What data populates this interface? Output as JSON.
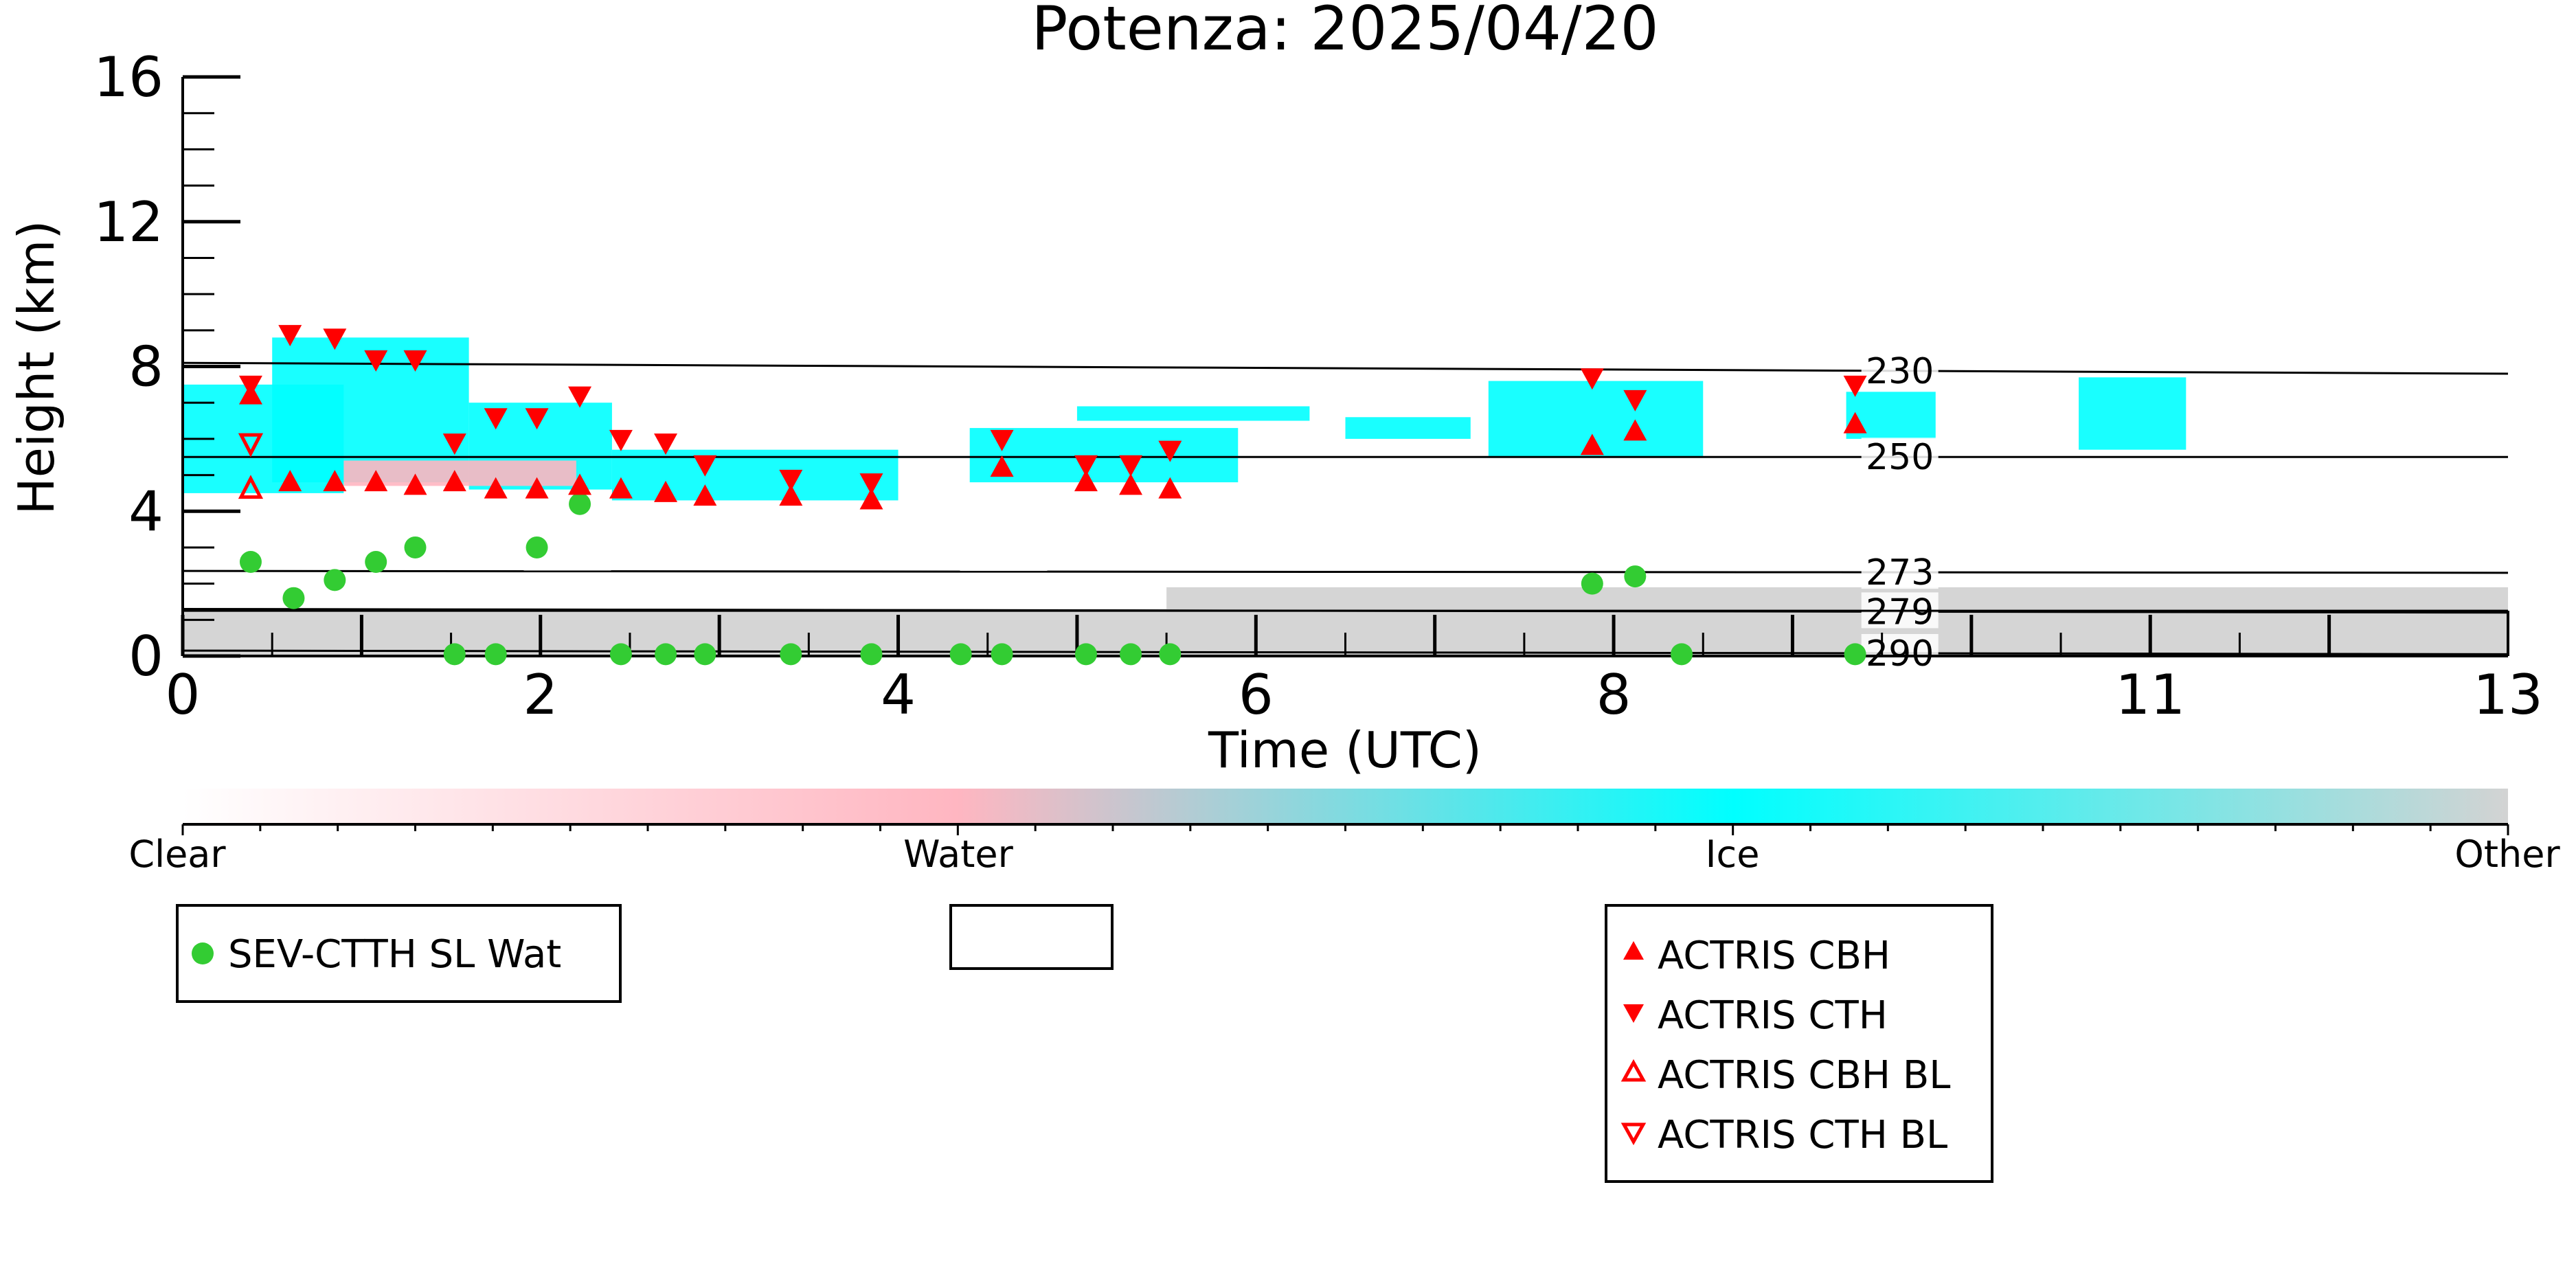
{
  "chart_data": {
    "type": "scatter",
    "title": "Potenza: 2025/04/20",
    "xlabel": "Time (UTC)",
    "ylabel": "Height (km)",
    "xlim": [
      0,
      13
    ],
    "ylim": [
      0,
      16
    ],
    "x_ticks": [
      "0",
      "2",
      "4",
      "6",
      "8",
      "11",
      "13"
    ],
    "x_tick_values": [
      0,
      2,
      4,
      6,
      8,
      11,
      13
    ],
    "y_ticks": [
      "0",
      "4",
      "8",
      "12",
      "16"
    ],
    "y_tick_values": [
      0,
      4,
      8,
      12,
      16
    ],
    "grid": false,
    "colors": {
      "clear": "#ffffff",
      "water": "#ffb6c1",
      "ice": "#00ffff",
      "other": "#d3d3d3",
      "markers": "#ff0000",
      "sev": "#33cc33"
    },
    "colorbar": {
      "labels": [
        "Clear",
        "Water",
        "Ice",
        "Other"
      ]
    },
    "isotherms": [
      {
        "label": "230",
        "y_start": 8.1,
        "y_end": 7.8
      },
      {
        "label": "250",
        "y_start": 5.5,
        "y_end": 5.5
      },
      {
        "label": "273",
        "y_start": 2.35,
        "y_end": 2.3
      },
      {
        "label": "279",
        "y_start": 1.3,
        "y_end": 1.2
      },
      {
        "label": "290",
        "y_start": 0.15,
        "y_end": 0.05
      }
    ],
    "cloud_regions": [
      {
        "class": "ice",
        "x": [
          0.0,
          0.9
        ],
        "y": [
          4.5,
          7.5
        ]
      },
      {
        "class": "ice",
        "x": [
          0.5,
          1.6
        ],
        "y": [
          4.8,
          8.8
        ]
      },
      {
        "class": "ice",
        "x": [
          1.6,
          2.4
        ],
        "y": [
          4.6,
          7.0
        ]
      },
      {
        "class": "water",
        "x": [
          0.9,
          2.2
        ],
        "y": [
          4.7,
          5.4
        ]
      },
      {
        "class": "ice",
        "x": [
          2.4,
          4.0
        ],
        "y": [
          4.3,
          5.7
        ]
      },
      {
        "class": "ice",
        "x": [
          4.4,
          5.9
        ],
        "y": [
          4.8,
          6.3
        ]
      },
      {
        "class": "ice",
        "x": [
          5.0,
          6.3
        ],
        "y": [
          6.5,
          6.9
        ]
      },
      {
        "class": "ice",
        "x": [
          6.5,
          7.2
        ],
        "y": [
          6.0,
          6.6
        ]
      },
      {
        "class": "ice",
        "x": [
          7.3,
          8.5
        ],
        "y": [
          5.5,
          7.6
        ]
      },
      {
        "class": "ice",
        "x": [
          9.3,
          9.8
        ],
        "y": [
          6.0,
          7.3
        ]
      },
      {
        "class": "ice",
        "x": [
          10.6,
          11.2
        ],
        "y": [
          5.7,
          7.7
        ]
      },
      {
        "class": "other",
        "x": [
          0.0,
          13.0
        ],
        "y": [
          0.0,
          1.3
        ]
      },
      {
        "class": "other",
        "x": [
          5.5,
          13.0
        ],
        "y": [
          1.2,
          1.9
        ]
      }
    ],
    "series": [
      {
        "name": "SEV-CTTH SL Wat",
        "marker": "circle",
        "points": [
          [
            0.38,
            2.6
          ],
          [
            0.62,
            1.6
          ],
          [
            0.85,
            2.1
          ],
          [
            1.08,
            2.6
          ],
          [
            1.3,
            3.0
          ],
          [
            1.98,
            3.0
          ],
          [
            2.22,
            4.2
          ],
          [
            1.52,
            0.05
          ],
          [
            1.75,
            0.05
          ],
          [
            2.45,
            0.05
          ],
          [
            2.7,
            0.05
          ],
          [
            2.92,
            0.05
          ],
          [
            3.4,
            0.05
          ],
          [
            3.85,
            0.05
          ],
          [
            4.35,
            0.05
          ],
          [
            4.58,
            0.05
          ],
          [
            5.05,
            0.05
          ],
          [
            5.3,
            0.05
          ],
          [
            5.52,
            0.05
          ],
          [
            7.88,
            2.0
          ],
          [
            8.12,
            2.2
          ],
          [
            8.38,
            0.05
          ],
          [
            9.35,
            0.05
          ]
        ]
      },
      {
        "name": "ACTRIS CBH",
        "marker": "triangle-up",
        "points": [
          [
            0.38,
            7.2
          ],
          [
            0.6,
            4.8
          ],
          [
            0.85,
            4.8
          ],
          [
            1.08,
            4.8
          ],
          [
            1.3,
            4.7
          ],
          [
            1.52,
            4.8
          ],
          [
            1.75,
            4.6
          ],
          [
            1.98,
            4.6
          ],
          [
            2.22,
            4.7
          ],
          [
            2.45,
            4.6
          ],
          [
            2.7,
            4.5
          ],
          [
            2.92,
            4.4
          ],
          [
            3.4,
            4.4
          ],
          [
            3.85,
            4.3
          ],
          [
            4.58,
            5.2
          ],
          [
            5.05,
            4.8
          ],
          [
            5.3,
            4.7
          ],
          [
            5.52,
            4.6
          ],
          [
            7.88,
            5.8
          ],
          [
            8.12,
            6.2
          ],
          [
            9.35,
            6.4
          ]
        ]
      },
      {
        "name": "ACTRIS CTH",
        "marker": "triangle-down",
        "points": [
          [
            0.38,
            7.5
          ],
          [
            0.6,
            8.9
          ],
          [
            0.85,
            8.8
          ],
          [
            1.08,
            8.2
          ],
          [
            1.3,
            8.2
          ],
          [
            1.52,
            5.9
          ],
          [
            1.75,
            6.6
          ],
          [
            1.98,
            6.6
          ],
          [
            2.22,
            7.2
          ],
          [
            2.45,
            6.0
          ],
          [
            2.7,
            5.9
          ],
          [
            2.92,
            5.3
          ],
          [
            3.4,
            4.9
          ],
          [
            3.85,
            4.8
          ],
          [
            4.58,
            6.0
          ],
          [
            5.05,
            5.3
          ],
          [
            5.3,
            5.3
          ],
          [
            5.52,
            5.7
          ],
          [
            7.88,
            7.7
          ],
          [
            8.12,
            7.1
          ],
          [
            9.35,
            7.5
          ]
        ]
      },
      {
        "name": "ACTRIS CBH BL",
        "marker": "triangle-up-open",
        "points": [
          [
            0.38,
            4.6
          ]
        ]
      },
      {
        "name": "ACTRIS CTH BL",
        "marker": "triangle-down-open",
        "points": [
          [
            0.38,
            5.9
          ]
        ]
      }
    ],
    "legend": {
      "left_box": [
        "SEV-CTTH SL Wat"
      ],
      "right_box": [
        "ACTRIS CBH",
        "ACTRIS CTH",
        "ACTRIS CBH BL",
        "ACTRIS CTH BL"
      ]
    }
  }
}
